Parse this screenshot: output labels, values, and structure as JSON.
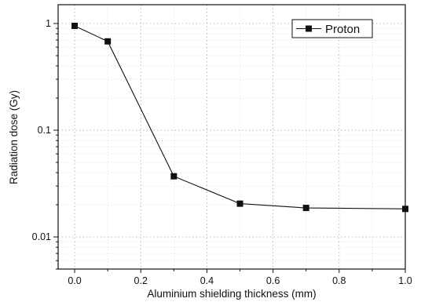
{
  "chart_data": {
    "type": "line",
    "title": "",
    "xlabel": "Aluminium shielding thickness (mm)",
    "ylabel": "Radiation dose (Gy)",
    "xlim": [
      -0.05,
      1.0
    ],
    "ylim": [
      0.005,
      1.5
    ],
    "yscale": "log",
    "grid": true,
    "legend_position": "top-right",
    "x_ticks": [
      0.0,
      0.2,
      0.4,
      0.6,
      0.8,
      1.0
    ],
    "x_tick_labels": [
      "0.0",
      "0.2",
      "0.4",
      "0.6",
      "0.8",
      "1.0"
    ],
    "y_ticks": [
      0.01,
      0.1,
      1
    ],
    "y_tick_labels": [
      "0.01",
      "0.1",
      "1"
    ],
    "series": [
      {
        "name": "Proton",
        "color": "#111111",
        "marker": "square",
        "x": [
          0.0,
          0.1,
          0.3,
          0.5,
          0.7,
          1.0
        ],
        "y": [
          0.95,
          0.68,
          0.037,
          0.0205,
          0.0187,
          0.0183
        ]
      }
    ]
  }
}
